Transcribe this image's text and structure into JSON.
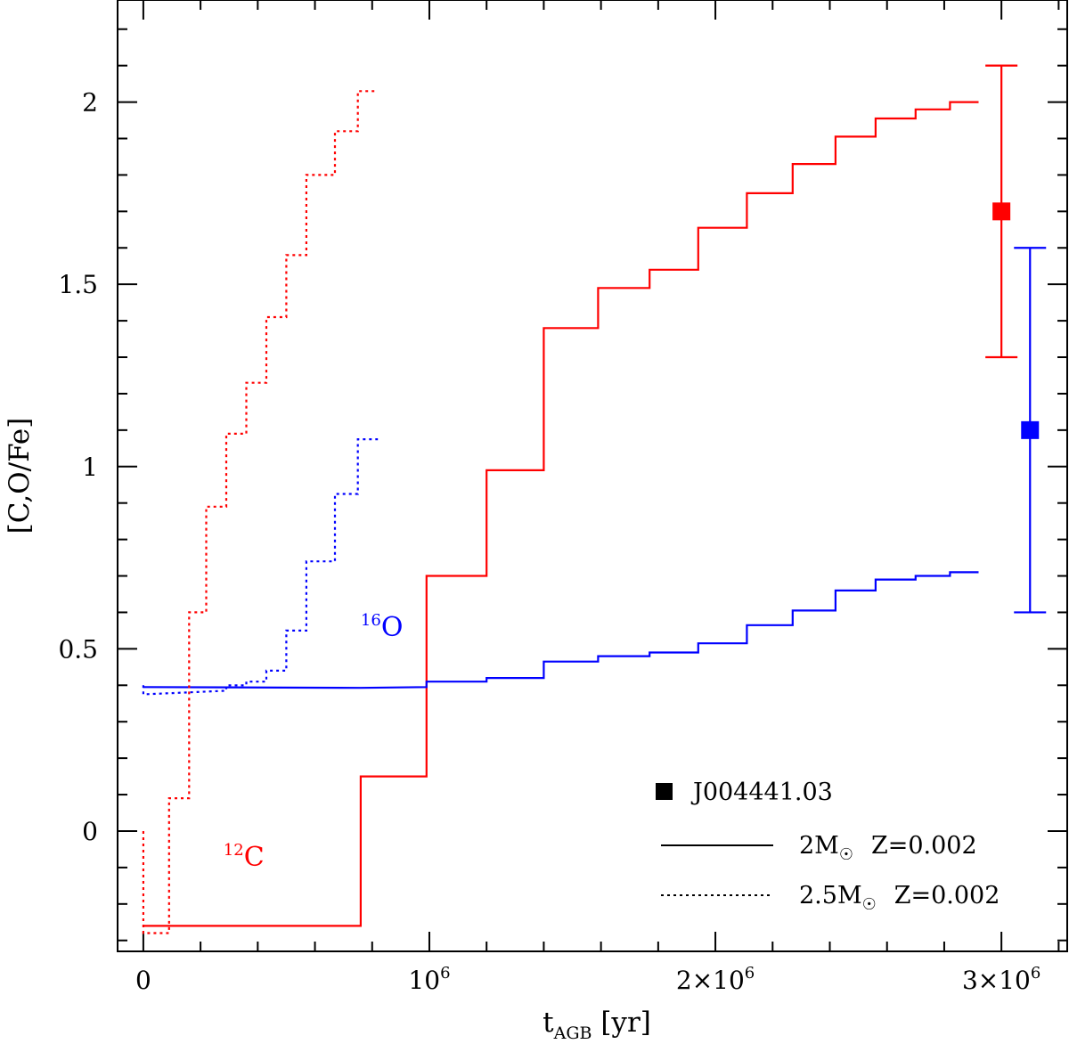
{
  "chart_data": {
    "type": "line",
    "title": "",
    "xlabel": {
      "main": "t",
      "sub": "AGB",
      "unit": " [yr]"
    },
    "ylabel": "[C,O/Fe]",
    "xlim": [
      -90000,
      3230000
    ],
    "ylim": [
      -0.33,
      2.28
    ],
    "x_ticks": [
      {
        "value": 0,
        "label": "0"
      },
      {
        "value": 1000000,
        "base": "10",
        "sup": "6"
      },
      {
        "value": 2000000,
        "base": "2×10",
        "sup": "6"
      },
      {
        "value": 3000000,
        "base": "3×10",
        "sup": "6"
      }
    ],
    "y_ticks": [
      {
        "value": 0,
        "label": "0"
      },
      {
        "value": 0.5,
        "label": "0.5"
      },
      {
        "value": 1,
        "label": "1"
      },
      {
        "value": 1.5,
        "label": "1.5"
      },
      {
        "value": 2,
        "label": "2"
      }
    ],
    "series": [
      {
        "name": "12C 2Msun Z=0.002",
        "element": "C",
        "color": "#ff0000",
        "style": "solid",
        "x": [
          0,
          760000,
          760000,
          990000,
          990000,
          1200000,
          1200000,
          1400000,
          1400000,
          1590000,
          1590000,
          1770000,
          1770000,
          1940000,
          1940000,
          2110000,
          2110000,
          2270000,
          2270000,
          2420000,
          2420000,
          2560000,
          2560000,
          2700000,
          2700000,
          2820000,
          2820000,
          2920000
        ],
        "y": [
          -0.26,
          -0.26,
          0.15,
          0.15,
          0.7,
          0.7,
          0.99,
          0.99,
          1.38,
          1.38,
          1.49,
          1.49,
          1.54,
          1.54,
          1.655,
          1.655,
          1.75,
          1.75,
          1.83,
          1.83,
          1.905,
          1.905,
          1.955,
          1.955,
          1.98,
          1.98,
          2.0,
          2.0
        ]
      },
      {
        "name": "16O 2Msun Z=0.002",
        "element": "O",
        "color": "#0000ff",
        "style": "solid",
        "x": [
          0,
          760000,
          990000,
          990000,
          1200000,
          1200000,
          1400000,
          1400000,
          1590000,
          1590000,
          1770000,
          1770000,
          1940000,
          1940000,
          2110000,
          2110000,
          2270000,
          2270000,
          2420000,
          2420000,
          2560000,
          2560000,
          2700000,
          2700000,
          2820000,
          2820000,
          2920000
        ],
        "y": [
          0.395,
          0.393,
          0.395,
          0.41,
          0.41,
          0.42,
          0.42,
          0.465,
          0.465,
          0.48,
          0.48,
          0.49,
          0.49,
          0.515,
          0.515,
          0.565,
          0.565,
          0.605,
          0.605,
          0.66,
          0.66,
          0.69,
          0.69,
          0.7,
          0.7,
          0.71,
          0.71
        ]
      },
      {
        "name": "12C 2.5Msun Z=0.002",
        "element": "C",
        "color": "#ff0000",
        "style": "dotted",
        "x": [
          0,
          0,
          90000,
          90000,
          160000,
          160000,
          220000,
          220000,
          290000,
          290000,
          360000,
          360000,
          430000,
          430000,
          500000,
          500000,
          570000,
          570000,
          670000,
          670000,
          750000,
          750000,
          820000
        ],
        "y": [
          0,
          -0.28,
          -0.28,
          0.09,
          0.09,
          0.6,
          0.6,
          0.89,
          0.89,
          1.09,
          1.09,
          1.23,
          1.23,
          1.41,
          1.41,
          1.58,
          1.58,
          1.8,
          1.8,
          1.92,
          1.92,
          2.03,
          2.03
        ]
      },
      {
        "name": "16O 2.5Msun Z=0.002",
        "element": "O",
        "color": "#0000ff",
        "style": "dotted",
        "x": [
          0,
          0,
          290000,
          290000,
          360000,
          360000,
          430000,
          430000,
          500000,
          500000,
          570000,
          570000,
          670000,
          670000,
          750000,
          750000,
          820000
        ],
        "y": [
          0.4,
          0.375,
          0.385,
          0.4,
          0.4,
          0.41,
          0.41,
          0.44,
          0.44,
          0.55,
          0.55,
          0.74,
          0.74,
          0.925,
          0.925,
          1.075,
          1.075
        ]
      }
    ],
    "observations": [
      {
        "name": "J004441.03 [C/Fe]",
        "x": 3000000,
        "y": 1.7,
        "err_low": 1.3,
        "err_high": 2.1,
        "color": "#ff0000"
      },
      {
        "name": "J004441.03 [O/Fe]",
        "x": 3100000,
        "y": 1.1,
        "err_low": 0.6,
        "err_high": 1.6,
        "color": "#0000ff"
      }
    ],
    "annotations": [
      {
        "id": "c12",
        "mass": "12",
        "text": "C",
        "color": "#ff0000",
        "x": 280000,
        "y": -0.095
      },
      {
        "id": "o16",
        "mass": "16",
        "text": "O",
        "color": "#0000ff",
        "x": 760000,
        "y": 0.535
      }
    ],
    "legend": {
      "position": "bottom-right",
      "items": [
        {
          "kind": "marker",
          "label": "J004441.03"
        },
        {
          "kind": "solid",
          "mass": "2M",
          "metallicity": "Z=0.002"
        },
        {
          "kind": "dotted",
          "mass": "2.5M",
          "metallicity": "Z=0.002"
        }
      ]
    }
  }
}
